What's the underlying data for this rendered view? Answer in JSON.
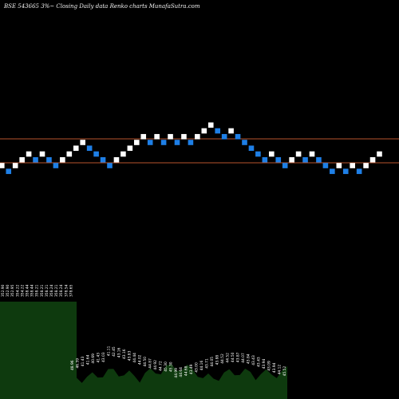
{
  "header": {
    "title": "BSE 543665 3%~  Closing Daily data  Renko  charts MunafaSutra.com"
  },
  "colors": {
    "background": "#000000",
    "up_brick": "#ffffff",
    "down_brick": "#1e7fe6",
    "reference_line": "#b9532c",
    "volume_fill": "#0e3a0e",
    "label_text": "#ffffff"
  },
  "chart_data": {
    "type": "renko",
    "brick_size_label": "3%",
    "reference_levels": [
      "upper",
      "lower"
    ],
    "bricks": [
      {
        "dir": "up",
        "level": 0
      },
      {
        "dir": "down",
        "level": -1
      },
      {
        "dir": "up",
        "level": 0
      },
      {
        "dir": "up",
        "level": 1
      },
      {
        "dir": "up",
        "level": 2
      },
      {
        "dir": "down",
        "level": 1
      },
      {
        "dir": "up",
        "level": 2
      },
      {
        "dir": "down",
        "level": 1
      },
      {
        "dir": "down",
        "level": 0
      },
      {
        "dir": "up",
        "level": 1
      },
      {
        "dir": "up",
        "level": 2
      },
      {
        "dir": "up",
        "level": 3
      },
      {
        "dir": "up",
        "level": 4
      },
      {
        "dir": "down",
        "level": 3
      },
      {
        "dir": "down",
        "level": 2
      },
      {
        "dir": "down",
        "level": 1
      },
      {
        "dir": "down",
        "level": 0
      },
      {
        "dir": "up",
        "level": 1
      },
      {
        "dir": "up",
        "level": 2
      },
      {
        "dir": "up",
        "level": 3
      },
      {
        "dir": "up",
        "level": 4
      },
      {
        "dir": "up",
        "level": 5
      },
      {
        "dir": "down",
        "level": 4
      },
      {
        "dir": "up",
        "level": 5
      },
      {
        "dir": "down",
        "level": 4
      },
      {
        "dir": "up",
        "level": 5
      },
      {
        "dir": "down",
        "level": 4
      },
      {
        "dir": "up",
        "level": 5
      },
      {
        "dir": "down",
        "level": 4
      },
      {
        "dir": "up",
        "level": 5
      },
      {
        "dir": "up",
        "level": 6
      },
      {
        "dir": "up",
        "level": 7
      },
      {
        "dir": "down",
        "level": 6
      },
      {
        "dir": "down",
        "level": 5
      },
      {
        "dir": "up",
        "level": 6
      },
      {
        "dir": "down",
        "level": 5
      },
      {
        "dir": "down",
        "level": 4
      },
      {
        "dir": "down",
        "level": 3
      },
      {
        "dir": "down",
        "level": 2
      },
      {
        "dir": "down",
        "level": 1
      },
      {
        "dir": "up",
        "level": 2
      },
      {
        "dir": "down",
        "level": 1
      },
      {
        "dir": "down",
        "level": 0
      },
      {
        "dir": "up",
        "level": 1
      },
      {
        "dir": "up",
        "level": 2
      },
      {
        "dir": "down",
        "level": 1
      },
      {
        "dir": "up",
        "level": 2
      },
      {
        "dir": "down",
        "level": 1
      },
      {
        "dir": "down",
        "level": 0
      },
      {
        "dir": "down",
        "level": -1
      },
      {
        "dir": "up",
        "level": 0
      },
      {
        "dir": "down",
        "level": -1
      },
      {
        "dir": "up",
        "level": 0
      },
      {
        "dir": "down",
        "level": -1
      },
      {
        "dir": "up",
        "level": 0
      },
      {
        "dir": "up",
        "level": 1
      },
      {
        "dir": "up",
        "level": 2
      }
    ],
    "brick_labels": [
      "352.90",
      "352.90",
      "352.95",
      "354.22",
      "354.22",
      "358.44",
      "358.44",
      "358.21",
      "358.21",
      "358.21",
      "358.24",
      "358.21",
      "358.24",
      "378.54",
      "378.65",
      "48.96",
      "46.59",
      "41.43",
      "41.64",
      "40.69",
      "41.43",
      "43.03",
      "41.11",
      "42.45",
      "43.16",
      "43.16",
      "43.83",
      "44.44",
      "44.02",
      "44.50",
      "44.87",
      "44.92",
      "44.72",
      "45.30",
      "45.30",
      "44.99",
      "44.64",
      "44.68",
      "43.49",
      "43.00",
      "44.16",
      "43.71",
      "44.05",
      "43.88",
      "44.52",
      "44.52",
      "44.50",
      "43.87",
      "44.07",
      "43.84",
      "43.43",
      "43.43",
      "43.94",
      "43.09",
      "43.94",
      "44.12",
      "45.52"
    ],
    "volume_profile": "tall block on the left third, then a low jagged series across the rest"
  }
}
